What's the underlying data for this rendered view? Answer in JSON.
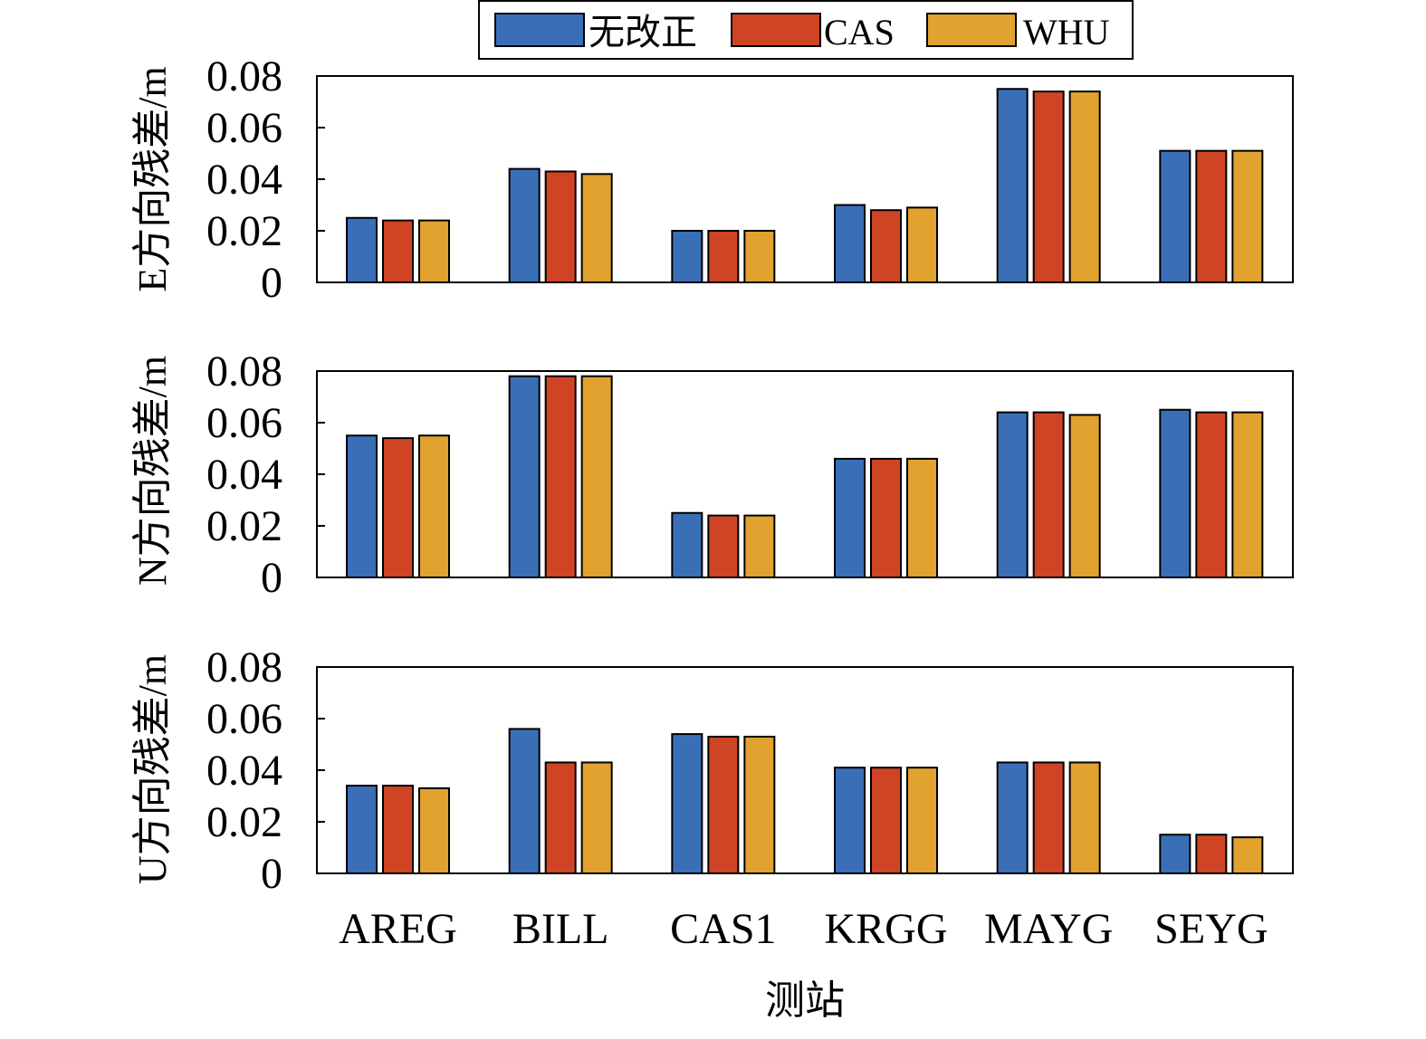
{
  "chart_data": {
    "type": "bar",
    "legend": {
      "position": "top-center",
      "series_names": [
        "无改正",
        "CAS",
        "WHU"
      ]
    },
    "colors": {
      "series": [
        "#3a6fb8",
        "#cf4425",
        "#e1a22f"
      ],
      "axes": "#000000"
    },
    "categories": [
      "AREG",
      "BILL",
      "CAS1",
      "KRGG",
      "MAYG",
      "SEYG"
    ],
    "xlabel": "测站",
    "y_ticks": [
      "0",
      "0.02",
      "0.04",
      "0.06",
      "0.08"
    ],
    "ylim": [
      0,
      0.08
    ],
    "grid": false,
    "panels": [
      {
        "ylabel": "E方向残差/m",
        "series": [
          {
            "name": "无改正",
            "values": [
              0.025,
              0.044,
              0.02,
              0.03,
              0.075,
              0.051
            ]
          },
          {
            "name": "CAS",
            "values": [
              0.024,
              0.043,
              0.02,
              0.028,
              0.074,
              0.051
            ]
          },
          {
            "name": "WHU",
            "values": [
              0.024,
              0.042,
              0.02,
              0.029,
              0.074,
              0.051
            ]
          }
        ]
      },
      {
        "ylabel": "N方向残差/m",
        "series": [
          {
            "name": "无改正",
            "values": [
              0.055,
              0.078,
              0.025,
              0.046,
              0.064,
              0.065
            ]
          },
          {
            "name": "CAS",
            "values": [
              0.054,
              0.078,
              0.024,
              0.046,
              0.064,
              0.064
            ]
          },
          {
            "name": "WHU",
            "values": [
              0.055,
              0.078,
              0.024,
              0.046,
              0.063,
              0.064
            ]
          }
        ]
      },
      {
        "ylabel": "U方向残差/m",
        "series": [
          {
            "name": "无改正",
            "values": [
              0.034,
              0.056,
              0.054,
              0.041,
              0.043,
              0.015
            ]
          },
          {
            "name": "CAS",
            "values": [
              0.034,
              0.043,
              0.053,
              0.041,
              0.043,
              0.015
            ]
          },
          {
            "name": "WHU",
            "values": [
              0.033,
              0.043,
              0.053,
              0.041,
              0.043,
              0.014
            ]
          }
        ]
      }
    ]
  }
}
